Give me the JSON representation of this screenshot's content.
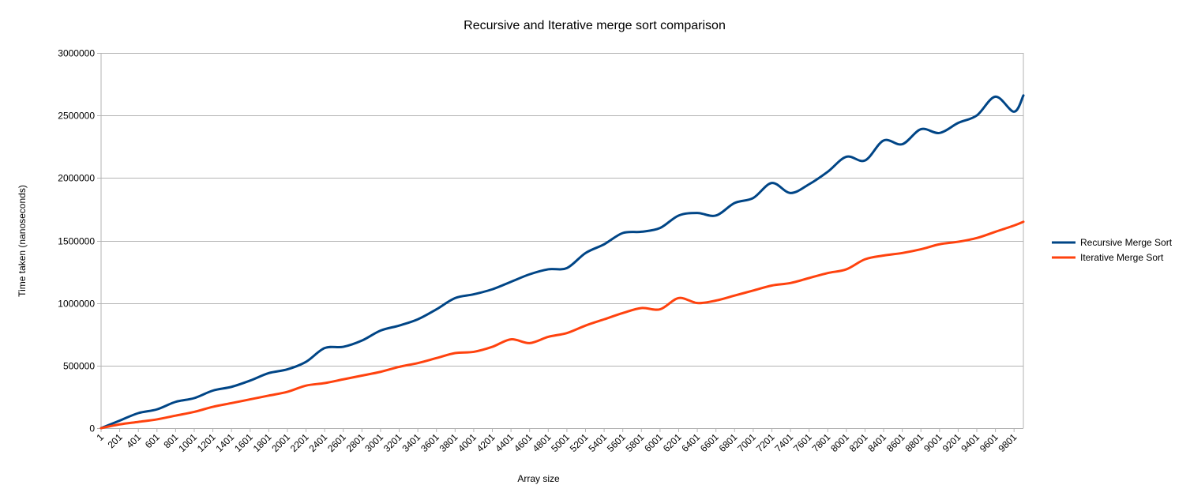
{
  "chart_data": {
    "type": "line",
    "title": "Recursive and Iterative merge sort comparison",
    "xlabel": "Array size",
    "ylabel": "Time taken (nanoseconds)",
    "ylim": [
      0,
      3000000
    ],
    "y_ticks": [
      "0",
      "500000",
      "1000000",
      "1500000",
      "2000000",
      "2500000",
      "3000000"
    ],
    "x_tick_labels": [
      "1",
      "201",
      "401",
      "601",
      "801",
      "1001",
      "1201",
      "1401",
      "1601",
      "1801",
      "2001",
      "2201",
      "2401",
      "2601",
      "2801",
      "3001",
      "3201",
      "3401",
      "3601",
      "3801",
      "4001",
      "4201",
      "4401",
      "4601",
      "4801",
      "5001",
      "5201",
      "5401",
      "5601",
      "5801",
      "6001",
      "6201",
      "6401",
      "6601",
      "6801",
      "7001",
      "7201",
      "7401",
      "7601",
      "7801",
      "8001",
      "8201",
      "8401",
      "8601",
      "8801",
      "9001",
      "9201",
      "9401",
      "9601",
      "9801"
    ],
    "x": [
      1,
      201,
      401,
      601,
      801,
      1001,
      1201,
      1401,
      1601,
      1801,
      2001,
      2201,
      2401,
      2601,
      2801,
      3001,
      3201,
      3401,
      3601,
      3801,
      4001,
      4201,
      4401,
      4601,
      4801,
      5001,
      5201,
      5401,
      5601,
      5801,
      6001,
      6201,
      6401,
      6601,
      6801,
      7001,
      7201,
      7401,
      7601,
      7801,
      8001,
      8201,
      8401,
      8601,
      8801,
      9001,
      9201,
      9401,
      9601,
      9801,
      9901
    ],
    "grid": true,
    "legend_position": "right",
    "series": [
      {
        "name": "Recursive Merge Sort",
        "color": "#004586",
        "values": [
          0,
          60000,
          120000,
          150000,
          210000,
          240000,
          300000,
          330000,
          380000,
          440000,
          470000,
          530000,
          640000,
          650000,
          700000,
          780000,
          820000,
          870000,
          950000,
          1040000,
          1070000,
          1110000,
          1170000,
          1230000,
          1270000,
          1280000,
          1400000,
          1470000,
          1560000,
          1570000,
          1600000,
          1700000,
          1720000,
          1700000,
          1800000,
          1840000,
          1960000,
          1880000,
          1950000,
          2050000,
          2170000,
          2140000,
          2300000,
          2270000,
          2390000,
          2360000,
          2440000,
          2500000,
          2650000,
          2530000,
          2660000
        ]
      },
      {
        "name": "Iterative Merge Sort",
        "color": "#ff420e",
        "values": [
          0,
          30000,
          50000,
          70000,
          100000,
          130000,
          170000,
          200000,
          230000,
          260000,
          290000,
          340000,
          360000,
          390000,
          420000,
          450000,
          490000,
          520000,
          560000,
          600000,
          610000,
          650000,
          710000,
          680000,
          730000,
          760000,
          820000,
          870000,
          920000,
          960000,
          950000,
          1040000,
          1000000,
          1020000,
          1060000,
          1100000,
          1140000,
          1160000,
          1200000,
          1240000,
          1270000,
          1350000,
          1380000,
          1400000,
          1430000,
          1470000,
          1490000,
          1520000,
          1570000,
          1620000,
          1650000
        ]
      }
    ]
  }
}
